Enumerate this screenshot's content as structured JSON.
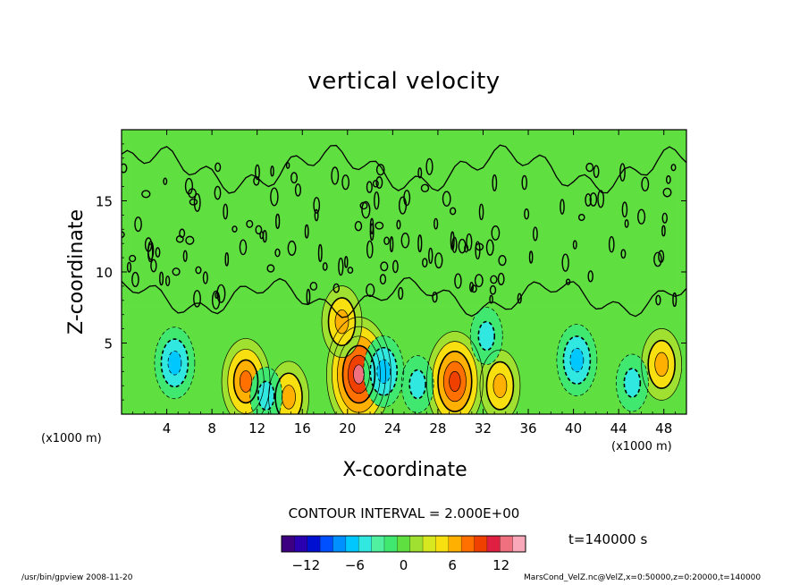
{
  "chart_data": {
    "type": "heatmap",
    "title": "vertical velocity",
    "xlabel": "X-coordinate",
    "ylabel": "Z-coordinate",
    "x_unit": "(x1000 m)",
    "xlim": [
      0,
      50
    ],
    "ylim": [
      0,
      20
    ],
    "x_ticks": [
      4,
      8,
      12,
      16,
      20,
      24,
      28,
      32,
      36,
      40,
      44,
      48
    ],
    "y_ticks": [
      5,
      10,
      15
    ],
    "contour_interval_label": "CONTOUR INTERVAL = 2.000E+00",
    "colorbar": {
      "min": -15,
      "max": 15,
      "tick_values": [
        -12,
        -6,
        0,
        6,
        12
      ],
      "tick_labels": [
        "−12",
        "−6",
        "0",
        "6",
        "12"
      ],
      "colors": [
        "#3c0080",
        "#2a00b0",
        "#0010d0",
        "#0050ff",
        "#0090ff",
        "#00c8ff",
        "#30e8e0",
        "#50f0a0",
        "#40e870",
        "#60e040",
        "#a0e030",
        "#d8e820",
        "#f8e010",
        "#ffb000",
        "#ff7000",
        "#f04000",
        "#e02040",
        "#f07080",
        "#f8a8b8"
      ]
    },
    "features": [
      {
        "x": 21,
        "z": 2.8,
        "w": 12,
        "kind": "updraft"
      },
      {
        "x": 29.5,
        "z": 2.3,
        "w": 9,
        "kind": "updraft"
      },
      {
        "x": 11,
        "z": 2.3,
        "w": 8,
        "kind": "updraft"
      },
      {
        "x": 14.8,
        "z": 1.2,
        "w": 6,
        "kind": "updraft"
      },
      {
        "x": 47.8,
        "z": 3.5,
        "w": 6,
        "kind": "updraft"
      },
      {
        "x": 33.5,
        "z": 2.0,
        "w": 5,
        "kind": "updraft"
      },
      {
        "x": 19.5,
        "z": 6.5,
        "w": 5,
        "kind": "updraft"
      },
      {
        "x": 4.7,
        "z": 3.6,
        "w": -6,
        "kind": "downdraft"
      },
      {
        "x": 23.2,
        "z": 3.0,
        "w": -6,
        "kind": "downdraft"
      },
      {
        "x": 40.3,
        "z": 3.8,
        "w": -5,
        "kind": "downdraft"
      },
      {
        "x": 12.8,
        "z": 1.3,
        "w": -4,
        "kind": "downdraft"
      },
      {
        "x": 26.2,
        "z": 2.1,
        "w": -4,
        "kind": "downdraft"
      },
      {
        "x": 45.2,
        "z": 2.2,
        "w": -4,
        "kind": "downdraft"
      },
      {
        "x": 32.3,
        "z": 5.5,
        "w": -3,
        "kind": "downdraft"
      }
    ]
  },
  "time_label": "t=140000 s",
  "footer": {
    "left": "/usr/bin/gpview   2008-11-20",
    "right": "MarsCond_VelZ.nc@VelZ,x=0:50000,z=0:20000,t=140000"
  }
}
